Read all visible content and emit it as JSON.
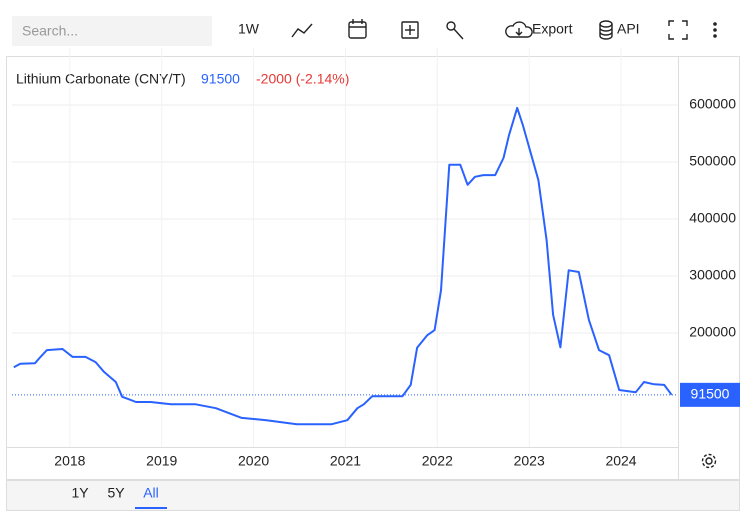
{
  "toolbar": {
    "search_placeholder": "Search...",
    "interval": "1W",
    "export": "Export",
    "api": "API"
  },
  "ranges": [
    "1Y",
    "5Y",
    "All"
  ],
  "chart_data": {
    "type": "line",
    "title": "Lithium Carbonate (CNY/T)",
    "last_value": 91500,
    "change": "-2000 (-2.14%)",
    "series": [
      {
        "name": "Lithium Carbonate",
        "color": "#2962ff",
        "x": [
          2017.39,
          2017.46,
          2017.62,
          2017.68,
          2017.75,
          2017.92,
          2018.03,
          2018.17,
          2018.28,
          2018.37,
          2018.5,
          2018.57,
          2018.72,
          2018.88,
          2019.1,
          2019.37,
          2019.59,
          2019.87,
          2020.14,
          2020.47,
          2020.85,
          2021.02,
          2021.13,
          2021.2,
          2021.29,
          2021.62,
          2021.71,
          2021.78,
          2021.89,
          2021.97,
          2022.04,
          2022.13,
          2022.25,
          2022.33,
          2022.41,
          2022.5,
          2022.63,
          2022.72,
          2022.78,
          2022.87,
          2022.93,
          2023.1,
          2023.19,
          2023.26,
          2023.34,
          2023.43,
          2023.54,
          2023.65,
          2023.76,
          2023.87,
          2023.98,
          2024.16,
          2024.25,
          2024.36,
          2024.47,
          2024.55
        ],
        "values": [
          140000,
          146000,
          147000,
          158000,
          170000,
          172000,
          158000,
          158000,
          149000,
          132000,
          114000,
          88000,
          79000,
          79000,
          75000,
          75000,
          68000,
          51000,
          47000,
          40000,
          40000,
          47000,
          68000,
          75000,
          89000,
          89000,
          109000,
          174000,
          196000,
          205000,
          275000,
          495000,
          495000,
          460000,
          474000,
          477000,
          477000,
          507000,
          547000,
          595000,
          565000,
          468000,
          363000,
          232000,
          175000,
          310000,
          307000,
          223000,
          170000,
          161000,
          100000,
          96000,
          114000,
          110000,
          109000,
          91500
        ]
      }
    ],
    "xlim": [
      2017.37,
      2024.62
    ],
    "xticks": [
      2018,
      2019,
      2020,
      2021,
      2022,
      2023,
      2024
    ],
    "ylim": [
      0,
      700000
    ],
    "yticks": [
      200000,
      300000,
      400000,
      500000,
      600000
    ],
    "grid": true
  }
}
